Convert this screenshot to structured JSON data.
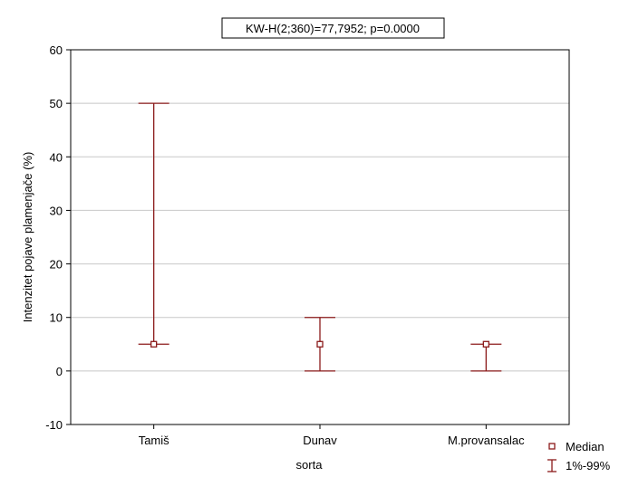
{
  "chart_data": {
    "type": "box",
    "title": "KW-H(2;360)=77,7952; p=0.0000",
    "xlabel": "sorta",
    "ylabel": "Intenzitet pojave plamenjače (%)",
    "ylim": [
      -10,
      60
    ],
    "yticks": [
      -10,
      0,
      10,
      20,
      30,
      40,
      50,
      60
    ],
    "grid": true,
    "categories": [
      "Tamiš",
      "Dunav",
      "M.provansalac"
    ],
    "series": [
      {
        "name": "Median",
        "values": [
          5,
          5,
          5
        ]
      },
      {
        "name": "1%-99%",
        "low": [
          5,
          0,
          0
        ],
        "high": [
          50,
          10,
          5
        ]
      }
    ],
    "legend_position": "bottom-right",
    "colors": {
      "series": "#8b1a1a",
      "grid": "#c8c8c8",
      "axis": "#000000"
    }
  }
}
